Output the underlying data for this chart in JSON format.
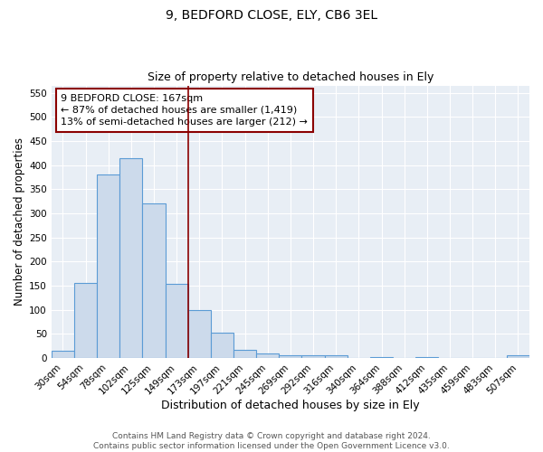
{
  "title1": "9, BEDFORD CLOSE, ELY, CB6 3EL",
  "title2": "Size of property relative to detached houses in Ely",
  "xlabel": "Distribution of detached houses by size in Ely",
  "ylabel": "Number of detached properties",
  "categories": [
    "30sqm",
    "54sqm",
    "78sqm",
    "102sqm",
    "125sqm",
    "149sqm",
    "173sqm",
    "197sqm",
    "221sqm",
    "245sqm",
    "269sqm",
    "292sqm",
    "316sqm",
    "340sqm",
    "364sqm",
    "388sqm",
    "412sqm",
    "435sqm",
    "459sqm",
    "483sqm",
    "507sqm"
  ],
  "values": [
    15,
    155,
    380,
    415,
    320,
    153,
    100,
    53,
    18,
    10,
    5,
    5,
    5,
    0,
    3,
    0,
    3,
    0,
    0,
    0,
    5
  ],
  "bar_color": "#ccdaeb",
  "bar_edge_color": "#5b9bd5",
  "bar_edge_width": 0.8,
  "vline_x": 5.5,
  "vline_color": "#8b0000",
  "annotation_text": "9 BEDFORD CLOSE: 167sqm\n← 87% of detached houses are smaller (1,419)\n13% of semi-detached houses are larger (212) →",
  "annotation_box_color": "#ffffff",
  "annotation_box_edge_color": "#8b0000",
  "ylim": [
    0,
    565
  ],
  "yticks": [
    0,
    50,
    100,
    150,
    200,
    250,
    300,
    350,
    400,
    450,
    500,
    550
  ],
  "plot_bg": "#e8eef5",
  "footer_text": "Contains HM Land Registry data © Crown copyright and database right 2024.\nContains public sector information licensed under the Open Government Licence v3.0.",
  "title1_fontsize": 10,
  "title2_fontsize": 9,
  "xlabel_fontsize": 9,
  "ylabel_fontsize": 8.5,
  "tick_fontsize": 7.5,
  "annotation_fontsize": 8,
  "footer_fontsize": 6.5
}
